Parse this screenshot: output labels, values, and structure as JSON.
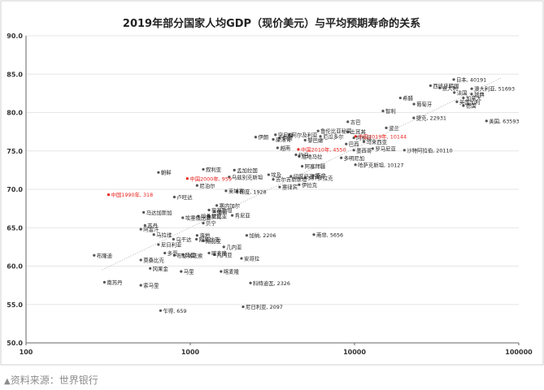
{
  "source_note": "资料来源：世界银行",
  "source_marker": "▲",
  "colors": {
    "point": "#555555",
    "label": "#222222",
    "highlight": "#e8211c",
    "trend": "#c9c9c9",
    "grid": "#e6e6e6",
    "axis": "#666666",
    "frame": "#d0d0d0"
  },
  "chart_data": {
    "type": "scatter",
    "title": "2019年部分国家人均GDP（现价美元）与平均预期寿命的关系",
    "xscale": "log",
    "xlim": [
      100,
      100000
    ],
    "ylim": [
      50,
      90
    ],
    "x_ticks": [
      100,
      1000,
      10000,
      100000
    ],
    "x_tick_labels": [
      "100",
      "1000",
      "10000",
      "100000"
    ],
    "y_ticks": [
      50,
      55,
      60,
      65,
      70,
      75,
      80,
      85,
      90
    ],
    "y_tick_labels": [
      "50.0",
      "55.0",
      "60.0",
      "65.0",
      "70.0",
      "75.0",
      "80.0",
      "85.0",
      "90.0"
    ],
    "grid": "horizontal",
    "trendline": {
      "x": [
        290,
        78000
      ],
      "y": [
        59.5,
        84.5
      ]
    },
    "points": [
      {
        "label": "日本, 40191",
        "x": 40191,
        "y": 84.3
      },
      {
        "label": "西班牙韩国",
        "x": 29000,
        "y": 83.5
      },
      {
        "label": "意大利",
        "x": 33000,
        "y": 83.2
      },
      {
        "label": "澳大利亚, 51693",
        "x": 51693,
        "y": 83.1
      },
      {
        "label": "法国",
        "x": 40500,
        "y": 82.6
      },
      {
        "label": "瑞典",
        "x": 51600,
        "y": 82.4
      },
      {
        "label": "希腊",
        "x": 19000,
        "y": 81.9
      },
      {
        "label": "加拿大",
        "x": 46000,
        "y": 81.9
      },
      {
        "label": "英国加利",
        "x": 42000,
        "y": 81.4
      },
      {
        "label": "葡萄牙",
        "x": 23000,
        "y": 81.1
      },
      {
        "label": "德国",
        "x": 46000,
        "y": 80.9
      },
      {
        "label": "智利",
        "x": 14900,
        "y": 80.2
      },
      {
        "label": "捷克, 22931",
        "x": 22931,
        "y": 79.3
      },
      {
        "label": "美国, 63593",
        "x": 63593,
        "y": 78.9
      },
      {
        "label": "古巴",
        "x": 9100,
        "y": 78.8
      },
      {
        "label": "波兰",
        "x": 15600,
        "y": 78.0
      },
      {
        "label": "鲁伦比亚秘国",
        "x": 6000,
        "y": 77.6
      },
      {
        "label": "土耳其",
        "x": 9100,
        "y": 77.5
      },
      {
        "label": "阿尔及利亚",
        "x": 4000,
        "y": 77.1
      },
      {
        "label": "伊朗",
        "x": 3500,
        "y": 76.7
      },
      {
        "label": "黎巴嫩",
        "x": 5000,
        "y": 76.4
      },
      {
        "label": "厄瓜多尔",
        "x": 6200,
        "y": 76.9
      },
      {
        "label": "马来西亚",
        "x": 11400,
        "y": 76.2
      },
      {
        "label": "突尼斯",
        "x": 3300,
        "y": 77.1
      },
      {
        "label": "阿根廷",
        "x": 9900,
        "y": 76.7
      },
      {
        "label": "中国2019年, 10144",
        "x": 10144,
        "y": 76.9,
        "highlight": true
      },
      {
        "label": "巴西",
        "x": 8900,
        "y": 75.9
      },
      {
        "label": "伊朗",
        "x": 2500,
        "y": 76.8
      },
      {
        "label": "康洛哥",
        "x": 3200,
        "y": 76.5
      },
      {
        "label": "越南",
        "x": 3400,
        "y": 75.4
      },
      {
        "label": "中国2010年, 4550",
        "x": 4550,
        "y": 75.2,
        "highlight": true
      },
      {
        "label": "墨西哥",
        "x": 9900,
        "y": 75.1
      },
      {
        "label": "罗马尼亚",
        "x": 12900,
        "y": 75.3
      },
      {
        "label": "沙特阿拉伯, 20110",
        "x": 20110,
        "y": 75.1
      },
      {
        "label": "约旦",
        "x": 4400,
        "y": 74.5
      },
      {
        "label": "危地马拉",
        "x": 4600,
        "y": 74.3
      },
      {
        "label": "多明尼加",
        "x": 8300,
        "y": 74.1
      },
      {
        "label": "朝鲜",
        "x": 640,
        "y": 72.2
      },
      {
        "label": "叙利亚",
        "x": 1200,
        "y": 72.6
      },
      {
        "label": "孟加拉国",
        "x": 1855,
        "y": 72.5
      },
      {
        "label": "埃及",
        "x": 3000,
        "y": 71.9
      },
      {
        "label": "阿塞拜疆",
        "x": 4800,
        "y": 73.0
      },
      {
        "label": "哈萨克斯坦, 10127",
        "x": 10127,
        "y": 73.2
      },
      {
        "label": "中国2000年, 959",
        "x": 959,
        "y": 71.4,
        "highlight": true
      },
      {
        "label": "乌兹别克斯坦",
        "x": 1725,
        "y": 71.6
      },
      {
        "label": "吉尔吉斯斯坦",
        "x": 3200,
        "y": 71.3
      },
      {
        "label": "印度尼西亚",
        "x": 4100,
        "y": 71.7
      },
      {
        "label": "387伊拉克",
        "x": 5000,
        "y": 71.5
      },
      {
        "label": "南非",
        "x": 5600,
        "y": 71.8
      },
      {
        "label": "尼泊尔",
        "x": 1100,
        "y": 70.5
      },
      {
        "label": "柬埔寨",
        "x": 1650,
        "y": 69.8
      },
      {
        "label": "塞律宾",
        "x": 3500,
        "y": 70.3
      },
      {
        "label": "伊拉克",
        "x": 4600,
        "y": 70.6
      },
      {
        "label": "印度, 1928",
        "x": 1928,
        "y": 69.7
      },
      {
        "label": "中国1990年, 318",
        "x": 318,
        "y": 69.3,
        "highlight": true
      },
      {
        "label": "卢旺达",
        "x": 800,
        "y": 69.0
      },
      {
        "label": "塞内加尔",
        "x": 1450,
        "y": 67.9
      },
      {
        "label": "巴基斯坦",
        "x": 1300,
        "y": 67.3
      },
      {
        "label": "缅甸",
        "x": 1400,
        "y": 67.1
      },
      {
        "label": "赞比亚",
        "x": 1300,
        "y": 66.5
      },
      {
        "label": "坦桑尼亚",
        "x": 1120,
        "y": 66.5
      },
      {
        "label": "肯尼亚",
        "x": 1800,
        "y": 66.6
      },
      {
        "label": "马达加斯加",
        "x": 520,
        "y": 67.0
      },
      {
        "label": "海地",
        "x": 1100,
        "y": 64.0
      },
      {
        "label": "埃塞俄比亚",
        "x": 900,
        "y": 66.3
      },
      {
        "label": "贝宁",
        "x": 1200,
        "y": 65.6
      },
      {
        "label": "苏丹",
        "x": 530,
        "y": 65.3
      },
      {
        "label": "阿富汗",
        "x": 500,
        "y": 64.8
      },
      {
        "label": "马拉维",
        "x": 600,
        "y": 64.1
      },
      {
        "label": "乌干达",
        "x": 790,
        "y": 63.5
      },
      {
        "label": "加纳, 2206",
        "x": 2206,
        "y": 64.0
      },
      {
        "label": "南非, 5656",
        "x": 5656,
        "y": 64.1
      },
      {
        "label": "刚果比亚",
        "x": 1090,
        "y": 63.5
      },
      {
        "label": "刚比亚",
        "x": 1200,
        "y": 63.3
      },
      {
        "label": "尼日利亚",
        "x": 640,
        "y": 62.8
      },
      {
        "label": "几内亚",
        "x": 1600,
        "y": 62.5
      },
      {
        "label": "多哥",
        "x": 700,
        "y": 61.7
      },
      {
        "label": "马里",
        "x": 900,
        "y": 61.5
      },
      {
        "label": "布基纳法索",
        "x": 800,
        "y": 61.4
      },
      {
        "label": "几内亚",
        "x": 1400,
        "y": 61.5
      },
      {
        "label": "喀麦隆",
        "x": 1300,
        "y": 61.7
      },
      {
        "label": "安哥拉",
        "x": 2050,
        "y": 61.0
      },
      {
        "label": "莫桑比克",
        "x": 500,
        "y": 60.8
      },
      {
        "label": "冈果金",
        "x": 570,
        "y": 59.7
      },
      {
        "label": "布隆迪",
        "x": 260,
        "y": 61.4
      },
      {
        "label": "马里",
        "x": 880,
        "y": 59.3
      },
      {
        "label": "喀麦隆",
        "x": 1540,
        "y": 59.3
      },
      {
        "label": "南苏丹",
        "x": 300,
        "y": 57.9
      },
      {
        "label": "索马里",
        "x": 500,
        "y": 57.5
      },
      {
        "label": "科特迪瓦, 2326",
        "x": 2326,
        "y": 57.8
      },
      {
        "label": "乍得, 659",
        "x": 659,
        "y": 54.2
      },
      {
        "label": "尼日利亚, 2097",
        "x": 2097,
        "y": 54.7
      }
    ]
  }
}
